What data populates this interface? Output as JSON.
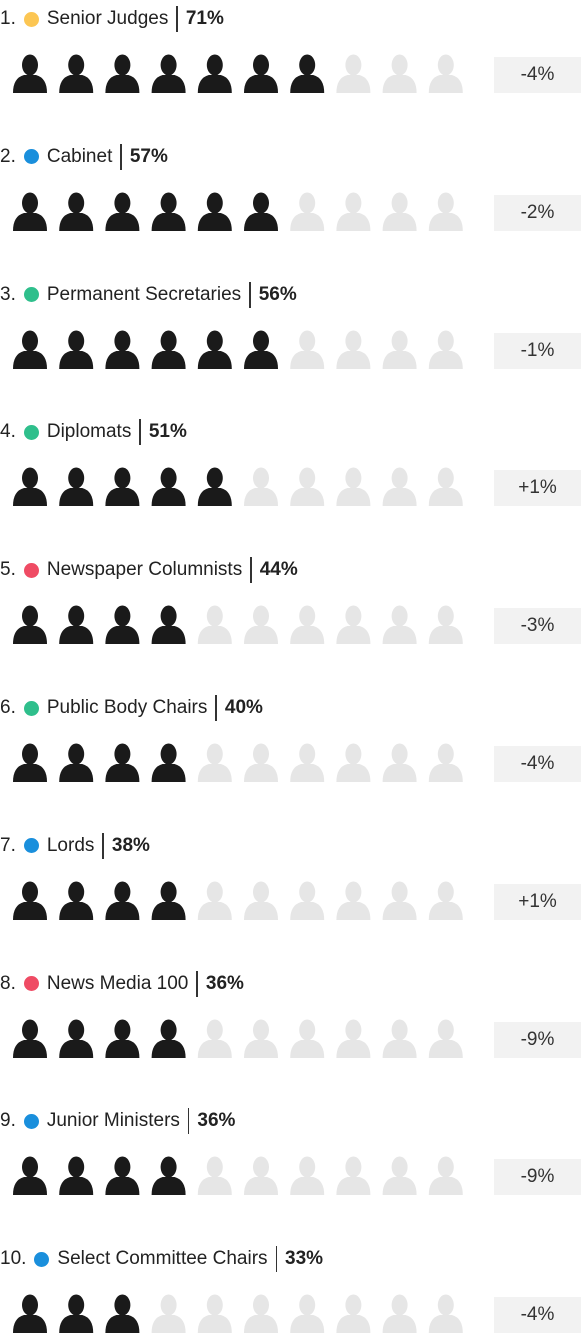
{
  "chart_data": {
    "type": "pictogram",
    "ranks": [
      "1.",
      "2.",
      "3.",
      "4.",
      "5.",
      "6.",
      "7.",
      "8.",
      "9.",
      "10."
    ],
    "categories": [
      "Senior Judges",
      "Cabinet",
      "Permanent Secretaries",
      "Diplomats",
      "Newspaper Columnists",
      "Public Body Chairs",
      "Lords",
      "News Media 100",
      "Junior Ministers",
      "Select Committee Chairs"
    ],
    "colors": [
      "#fcc653",
      "#1a8fdc",
      "#2fbf8c",
      "#2fbf8c",
      "#ef4b64",
      "#2fbf8c",
      "#1a8fdc",
      "#ef4b64",
      "#1a8fdc",
      "#1a8fdc"
    ],
    "values": [
      71,
      57,
      56,
      51,
      44,
      40,
      38,
      36,
      36,
      33
    ],
    "value_labels": [
      "71%",
      "57%",
      "56%",
      "51%",
      "44%",
      "40%",
      "38%",
      "36%",
      "36%",
      "33%"
    ],
    "changes": [
      -4,
      -2,
      -1,
      1,
      -3,
      -4,
      1,
      -9,
      -9,
      -4
    ],
    "change_labels": [
      "-4%",
      "-2%",
      "-1%",
      "+1%",
      "-3%",
      "-4%",
      "+1%",
      "-9%",
      "-9%",
      "-4%"
    ],
    "icon_colors": {
      "filled": "#1a1a1a",
      "empty": "#e6e6e6"
    }
  }
}
